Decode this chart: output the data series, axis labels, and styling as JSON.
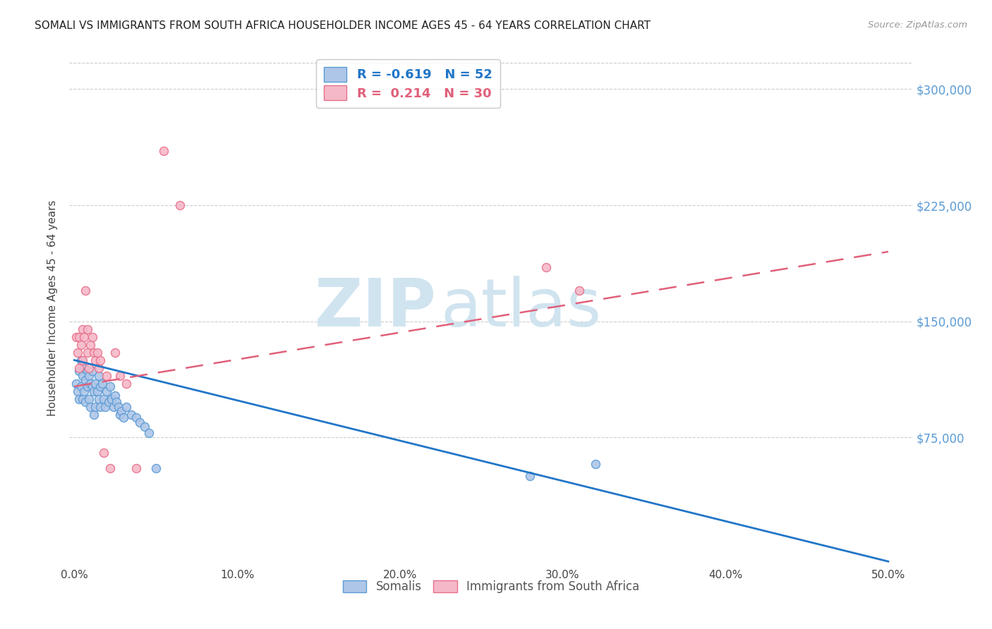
{
  "title": "SOMALI VS IMMIGRANTS FROM SOUTH AFRICA HOUSEHOLDER INCOME AGES 45 - 64 YEARS CORRELATION CHART",
  "source": "Source: ZipAtlas.com",
  "ylabel": "Householder Income Ages 45 - 64 years",
  "xlabel_ticks": [
    "0.0%",
    "10.0%",
    "20.0%",
    "30.0%",
    "40.0%",
    "50.0%"
  ],
  "xlabel_vals": [
    0.0,
    0.1,
    0.2,
    0.3,
    0.4,
    0.5
  ],
  "ytick_labels": [
    "$75,000",
    "$150,000",
    "$225,000",
    "$300,000"
  ],
  "ytick_vals": [
    75000,
    150000,
    225000,
    300000
  ],
  "ylim": [
    -8000,
    325000
  ],
  "xlim": [
    -0.003,
    0.515
  ],
  "somali_color": "#aec6e8",
  "south_africa_color": "#f5b8c8",
  "somali_edge": "#5b9bd5",
  "south_africa_edge": "#e8708a",
  "trendline_somali_color": "#2176c7",
  "trendline_sa_color": "#e0607a",
  "background_color": "#ffffff",
  "watermark_color": "#d0e4f0",
  "somali_x": [
    0.001,
    0.002,
    0.003,
    0.003,
    0.004,
    0.004,
    0.005,
    0.005,
    0.006,
    0.006,
    0.007,
    0.007,
    0.008,
    0.008,
    0.009,
    0.009,
    0.01,
    0.01,
    0.011,
    0.011,
    0.012,
    0.012,
    0.013,
    0.013,
    0.014,
    0.015,
    0.015,
    0.016,
    0.016,
    0.017,
    0.018,
    0.019,
    0.02,
    0.021,
    0.022,
    0.023,
    0.024,
    0.025,
    0.026,
    0.027,
    0.028,
    0.029,
    0.03,
    0.032,
    0.035,
    0.038,
    0.04,
    0.043,
    0.046,
    0.05,
    0.28,
    0.32
  ],
  "somali_y": [
    110000,
    105000,
    118000,
    100000,
    125000,
    108000,
    115000,
    100000,
    120000,
    105000,
    112000,
    98000,
    108000,
    118000,
    115000,
    100000,
    110000,
    95000,
    108000,
    118000,
    105000,
    90000,
    110000,
    95000,
    105000,
    100000,
    115000,
    108000,
    95000,
    110000,
    100000,
    95000,
    105000,
    98000,
    108000,
    100000,
    95000,
    102000,
    98000,
    95000,
    90000,
    92000,
    88000,
    95000,
    90000,
    88000,
    85000,
    82000,
    78000,
    55000,
    50000,
    58000
  ],
  "sa_x": [
    0.001,
    0.002,
    0.003,
    0.003,
    0.004,
    0.005,
    0.005,
    0.006,
    0.007,
    0.008,
    0.008,
    0.009,
    0.01,
    0.011,
    0.012,
    0.013,
    0.014,
    0.015,
    0.016,
    0.018,
    0.02,
    0.022,
    0.025,
    0.028,
    0.032,
    0.038,
    0.055,
    0.065,
    0.29,
    0.31
  ],
  "sa_y": [
    140000,
    130000,
    140000,
    120000,
    135000,
    145000,
    125000,
    140000,
    170000,
    130000,
    145000,
    120000,
    135000,
    140000,
    130000,
    125000,
    130000,
    120000,
    125000,
    65000,
    115000,
    55000,
    130000,
    115000,
    110000,
    55000,
    260000,
    225000,
    185000,
    170000
  ],
  "trendline_somali_x0": 0.0,
  "trendline_somali_y0": 125000,
  "trendline_somali_x1": 0.5,
  "trendline_somali_y1": -5000,
  "trendline_sa_x0": 0.0,
  "trendline_sa_y0": 108000,
  "trendline_sa_x1": 0.5,
  "trendline_sa_y1": 195000
}
